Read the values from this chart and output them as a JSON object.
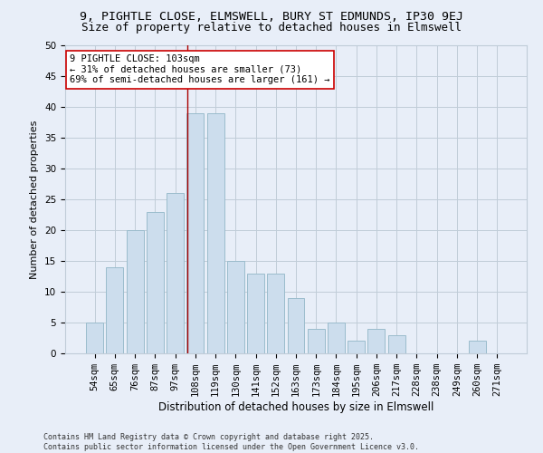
{
  "title": "9, PIGHTLE CLOSE, ELMSWELL, BURY ST EDMUNDS, IP30 9EJ",
  "subtitle": "Size of property relative to detached houses in Elmswell",
  "xlabel": "Distribution of detached houses by size in Elmswell",
  "ylabel": "Number of detached properties",
  "categories": [
    "54sqm",
    "65sqm",
    "76sqm",
    "87sqm",
    "97sqm",
    "108sqm",
    "119sqm",
    "130sqm",
    "141sqm",
    "152sqm",
    "163sqm",
    "173sqm",
    "184sqm",
    "195sqm",
    "206sqm",
    "217sqm",
    "228sqm",
    "238sqm",
    "249sqm",
    "260sqm",
    "271sqm"
  ],
  "values": [
    5,
    14,
    20,
    23,
    26,
    39,
    39,
    15,
    13,
    13,
    9,
    4,
    5,
    2,
    4,
    3,
    0,
    0,
    0,
    2,
    0
  ],
  "bar_color": "#ccdded",
  "bar_edge_color": "#9bbccc",
  "grid_color": "#c0ccd8",
  "background_color": "#e8eef8",
  "annotation_text_line1": "9 PIGHTLE CLOSE: 103sqm",
  "annotation_text_line2": "← 31% of detached houses are smaller (73)",
  "annotation_text_line3": "69% of semi-detached houses are larger (161) →",
  "annotation_box_facecolor": "#ffffff",
  "annotation_box_edgecolor": "#cc0000",
  "vline_color": "#aa0000",
  "vline_x_index": 4.62,
  "footer_line1": "Contains HM Land Registry data © Crown copyright and database right 2025.",
  "footer_line2": "Contains public sector information licensed under the Open Government Licence v3.0.",
  "ylim": [
    0,
    50
  ],
  "yticks": [
    0,
    5,
    10,
    15,
    20,
    25,
    30,
    35,
    40,
    45,
    50
  ],
  "title_fontsize": 9.5,
  "subtitle_fontsize": 9.0,
  "xlabel_fontsize": 8.5,
  "ylabel_fontsize": 8.0,
  "tick_fontsize": 7.5,
  "annot_fontsize": 7.5,
  "footer_fontsize": 6.0
}
